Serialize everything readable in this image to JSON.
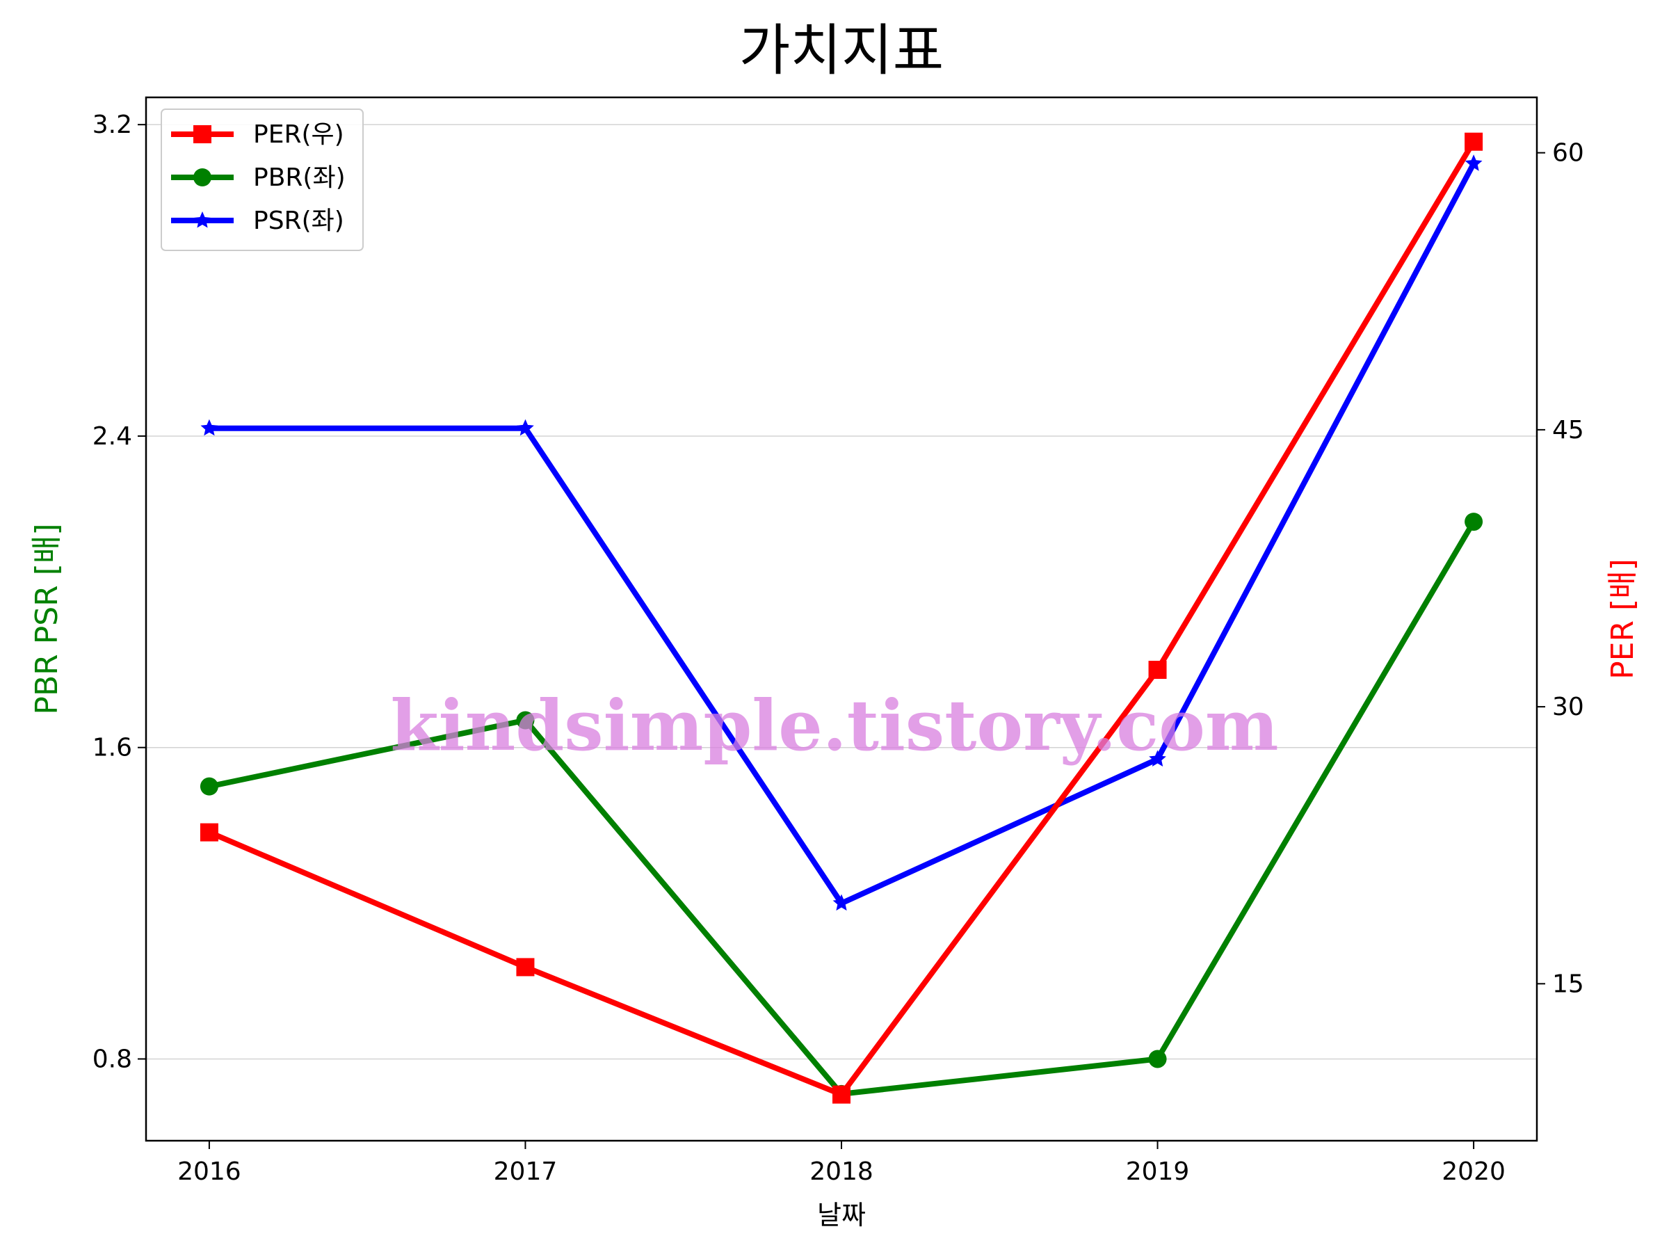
{
  "chart_data": {
    "type": "line",
    "title": "가치지표",
    "xlabel": "날짜",
    "ylabel_left": "PBR PSR [배]",
    "ylabel_right": "PER [배]",
    "categories": [
      "2016",
      "2017",
      "2018",
      "2019",
      "2020"
    ],
    "left_axis": {
      "ylim": [
        0.59,
        3.27
      ],
      "ticks": [
        0.8,
        1.6,
        2.4,
        3.2
      ],
      "tick_labels": [
        "0.8",
        "1.6",
        "2.4",
        "3.2"
      ]
    },
    "right_axis": {
      "ylim": [
        6.5,
        63.0
      ],
      "ticks": [
        15,
        30,
        45,
        60
      ],
      "tick_labels": [
        "15",
        "30",
        "45",
        "60"
      ]
    },
    "grid": "horizontal (left axis)",
    "legend_position": "top-left",
    "series": [
      {
        "name": "PER(우)",
        "axis": "right",
        "marker": "square",
        "color": "#ff0000",
        "values": [
          23.2,
          15.9,
          9.0,
          32.0,
          60.6
        ]
      },
      {
        "name": "PBR(좌)",
        "axis": "left",
        "marker": "circle",
        "color": "#008000",
        "values": [
          1.5,
          1.67,
          0.71,
          0.8,
          2.18
        ]
      },
      {
        "name": "PSR(좌)",
        "axis": "left",
        "marker": "star",
        "color": "#0000ff",
        "values": [
          2.42,
          2.42,
          1.2,
          1.57,
          3.1
        ]
      }
    ]
  },
  "watermark": "kindsimple.tistory.com"
}
